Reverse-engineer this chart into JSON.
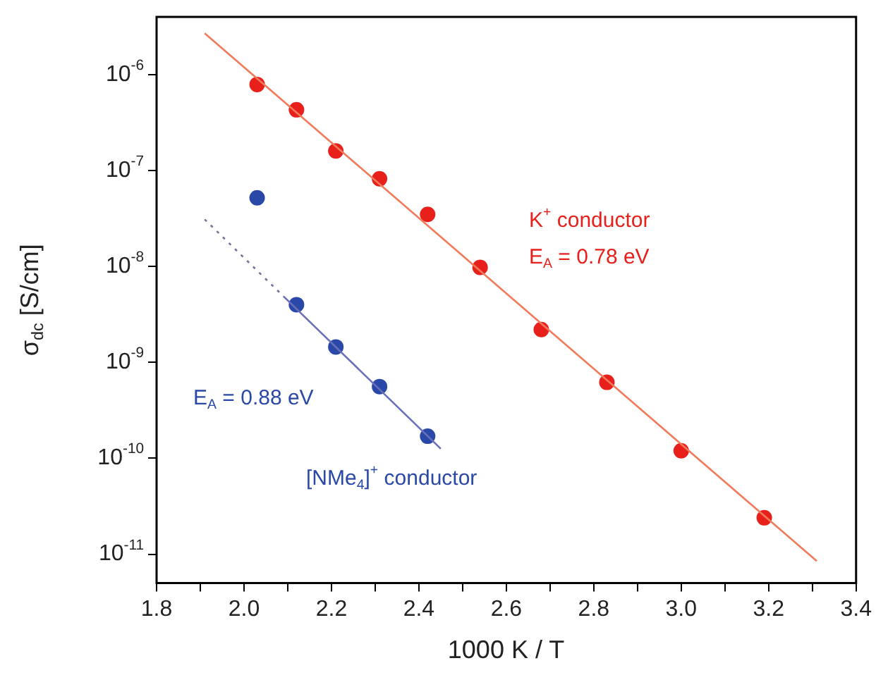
{
  "chart_data": {
    "type": "scatter",
    "xlabel": "1000 K / T",
    "ylabel": "σ$_{dc}$ [S/cm]",
    "log": "y",
    "grid": false,
    "legend": false,
    "marker": "circle",
    "xlim": [
      1.8,
      3.4
    ],
    "xticks": [
      1.8,
      {
        "value": 1.9,
        "label": null
      },
      {
        "value": 2.0,
        "label": "2.0"
      },
      {
        "value": 2.1,
        "label": null
      },
      2.2,
      {
        "value": 2.3,
        "label": null
      },
      2.4,
      {
        "value": 2.5,
        "label": null
      },
      2.6,
      {
        "value": 2.7,
        "label": null
      },
      2.8,
      {
        "value": 2.9,
        "label": null
      },
      {
        "value": 3.0,
        "label": "3.0"
      },
      {
        "value": 3.1,
        "label": null
      },
      3.2,
      {
        "value": 3.3,
        "label": null
      },
      3.4
    ],
    "ylim": [
      5e-12,
      4e-06
    ],
    "yticks": [
      {
        "value": 1e-11,
        "label": "10$^{-11}$"
      },
      {
        "value": 1e-10,
        "label": "10$^{-10}$"
      },
      {
        "value": 1e-09,
        "label": "10$^{-9}$"
      },
      {
        "value": 1e-08,
        "label": "10$^{-8}$"
      },
      {
        "value": 1e-07,
        "label": "10$^{-7}$"
      },
      {
        "value": 1e-06,
        "label": "10$^{-6}$"
      }
    ],
    "series": [
      {
        "type": "line",
        "color": "#f07a5a",
        "x": [
          1.91,
          3.31
        ],
        "values": [
          2.7e-06,
          8.5e-12
        ],
        "marker": "none"
      },
      {
        "type": "line",
        "color": "#6a70b8",
        "x": [
          2.09,
          2.45
        ],
        "values": [
          4.9e-09,
          1.26e-10
        ],
        "marker": "none"
      },
      {
        "type": "line",
        "color": "#7a6f9a",
        "x": [
          1.91,
          2.09
        ],
        "values": [
          3.1e-08,
          4.9e-09
        ],
        "marker": "none",
        "line_style": "dotted"
      },
      {
        "color": "#e8201c",
        "x": [
          2.03,
          2.12,
          2.21,
          2.31,
          2.42,
          2.54,
          2.68,
          2.83,
          3.0,
          3.19
        ],
        "values": [
          7.9e-07,
          4.3e-07,
          1.6e-07,
          8.2e-08,
          3.5e-08,
          9.8e-09,
          2.2e-09,
          6.2e-10,
          1.2e-10,
          2.4e-11
        ]
      },
      {
        "color": "#2a48a8",
        "x": [
          2.03,
          2.12,
          2.21,
          2.31,
          2.42
        ],
        "values": [
          5.2e-08,
          4e-09,
          1.45e-09,
          5.6e-10,
          1.7e-10
        ]
      }
    ],
    "annotations": [
      "K$^{+}$ conductor",
      "E$_{A}$ = 0.78 eV",
      "E$_{A}$ = 0.88 eV",
      "[NMe$_{4}$]$^{+}$ conductor"
    ]
  }
}
